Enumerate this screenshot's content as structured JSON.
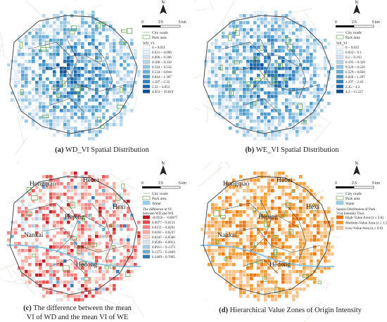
{
  "panels": [
    {
      "id": "a",
      "caption_letter": "(a)",
      "caption_text": "WD_VI Spatial Distribution",
      "scale": {
        "zero": "0",
        "mid": "2.5",
        "end": "5 km"
      },
      "legend_title": "WD_VI",
      "legend_items": [
        {
          "label": "City roads",
          "kind": "line",
          "color": "#c9d9c4"
        },
        {
          "label": "Park area",
          "kind": "box",
          "color": "#7fb069"
        }
      ],
      "classes": [
        {
          "label": "0 ~ 0.031",
          "color": "#f7fbff"
        },
        {
          "label": "0.031 ~ 0.096",
          "color": "#e3eef9"
        },
        {
          "label": "0.096 ~ 0.186",
          "color": "#cfe1f2"
        },
        {
          "label": "0.186 ~ 0.318",
          "color": "#b5d4e9"
        },
        {
          "label": "0.318 ~ 0.534",
          "color": "#93c4df"
        },
        {
          "label": "0.534 ~ 0.844",
          "color": "#6aaed6"
        },
        {
          "label": "0.844 ~ 1.397",
          "color": "#4a98c9"
        },
        {
          "label": "1.397 ~ 2.32",
          "color": "#2e7ebc"
        },
        {
          "label": "2.32 ~ 4.053",
          "color": "#1764ab"
        },
        {
          "label": "4.053 ~ 10.819",
          "color": "#0a4a90"
        }
      ]
    },
    {
      "id": "b",
      "caption_letter": "(b)",
      "caption_text": "WE_VI Spatial Distribution",
      "scale": {
        "zero": "0",
        "mid": "2.5",
        "end": "5 km"
      },
      "legend_title": "WE_VI",
      "legend_items": [
        {
          "label": "City roads",
          "kind": "line",
          "color": "#c9d9c4"
        },
        {
          "label": "Park area",
          "kind": "box",
          "color": "#7fb069"
        }
      ],
      "classes": [
        {
          "label": "0 ~ 0.033",
          "color": "#f7fbff"
        },
        {
          "label": "0.033 ~ 0.1",
          "color": "#e3eef9"
        },
        {
          "label": "0.1 ~ 0.193",
          "color": "#cfe1f2"
        },
        {
          "label": "0.193 ~ 0.329",
          "color": "#b5d4e9"
        },
        {
          "label": "0.329 ~ 0.529",
          "color": "#93c4df"
        },
        {
          "label": "0.529 ~ 0.828",
          "color": "#6aaed6"
        },
        {
          "label": "0.828 ~ 1.297",
          "color": "#4a98c9"
        },
        {
          "label": "1.297 ~ 2.45",
          "color": "#2e7ebc"
        },
        {
          "label": "2.45 ~ 4.3",
          "color": "#1764ab"
        },
        {
          "label": "4.3 ~ 11.527",
          "color": "#0a4a90"
        }
      ]
    },
    {
      "id": "c",
      "caption_letter": "(c)",
      "caption_text": "The difference between the mean VI of WD and the mean VI of WE",
      "caption_line1": "The difference between the mean",
      "caption_line2": "VI of WD and the mean VI of WE",
      "scale": {
        "zero": "0",
        "mid": "2.5",
        "end": "5 km"
      },
      "legend_title": "The difference in VI between WD and WE",
      "legend_title_line1": "The difference in VI",
      "legend_title_line2": "between WD and WE",
      "legend_items": [
        {
          "label": "City roads",
          "kind": "line",
          "color": "#c9d9c4"
        },
        {
          "label": "Park area",
          "kind": "box",
          "color": "#7fb069"
        },
        {
          "label": "Water",
          "kind": "box",
          "color": "#9ccbe0"
        }
      ],
      "classes": [
        {
          "label": "-0.0356 ~ -0.0077",
          "color": "#c1121f"
        },
        {
          "label": "0.0077 ~ 0.0131",
          "color": "#e34a4a"
        },
        {
          "label": "0.0131 ~ 0.0201",
          "color": "#f08080"
        },
        {
          "label": "0.0201 ~ 0.0247",
          "color": "#f6aaa0"
        },
        {
          "label": "0.0247 ~ 0.0566",
          "color": "#fbd3c8"
        },
        {
          "label": "0.0566 ~ 0.0913",
          "color": "#d6e5f0"
        },
        {
          "label": "0.0913 ~ 0.1373",
          "color": "#a8cae2"
        },
        {
          "label": "0.1373 ~ 0.2469",
          "color": "#6da6cf"
        },
        {
          "label": "0.2469 ~ 0.7095",
          "color": "#2f74b4"
        }
      ],
      "districts": [
        "Hongqiao",
        "Hebei",
        "Hexi",
        "Heping",
        "Nankai",
        "Hedong"
      ]
    },
    {
      "id": "d",
      "caption_letter": "(d)",
      "caption_text": "Hierarchical Value Zones of Origin Intensity",
      "scale": {
        "zero": "0",
        "mid": "2.5",
        "end": "5 km"
      },
      "legend_title": "Spatial Distribution of Park Visit Intensity Tiers",
      "legend_title_line1": "Spatial Distribution of Park",
      "legend_title_line2": "Visit Intensity Tiers",
      "legend_items": [
        {
          "label": "City roads",
          "kind": "line",
          "color": "#c9d9c4"
        },
        {
          "label": "Park area",
          "kind": "box",
          "color": "#7fb069"
        },
        {
          "label": "Water",
          "kind": "box",
          "color": "#9ccbe0"
        }
      ],
      "classes": [
        {
          "label": "High-Value Area (z ≥ 2.0)",
          "color": "#e8710a"
        },
        {
          "label": "Medium-Value Area (z ≥ 1.2)",
          "color": "#f39a2e"
        },
        {
          "label": "Low-Value Area (z ≥ 0.6)",
          "color": "#f7c28a"
        }
      ],
      "districts": [
        "Hongqiao",
        "Hebei",
        "Hexi",
        "Heping",
        "Nankai",
        "Hedong"
      ]
    }
  ],
  "north_arrow_label": "N"
}
